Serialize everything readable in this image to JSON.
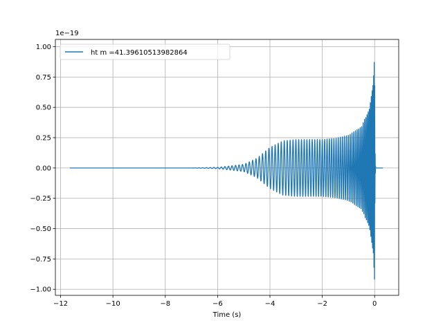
{
  "chart_data": {
    "type": "line",
    "title": "",
    "xlabel": "Time (s)",
    "ylabel": "",
    "y_offset_text": "1e−19",
    "xlim": [
      -12.2,
      0.92
    ],
    "ylim": [
      -1.05,
      1.06
    ],
    "x_ticks": [
      -12,
      -10,
      -8,
      -6,
      -4,
      -2,
      0
    ],
    "x_tick_labels": [
      "−12",
      "−10",
      "−8",
      "−6",
      "−4",
      "−2",
      "0"
    ],
    "y_ticks": [
      -1.0,
      -0.75,
      -0.5,
      -0.25,
      0.0,
      0.25,
      0.5,
      0.75,
      1.0
    ],
    "y_tick_labels": [
      "−1.00",
      "−0.75",
      "−0.50",
      "−0.25",
      "0.00",
      "0.25",
      "0.50",
      "0.75",
      "1.00"
    ],
    "grid": true,
    "legend": {
      "position": "top-left",
      "entries": [
        "ht m =41.39610513982864"
      ]
    },
    "series": [
      {
        "name": "ht m =41.39610513982864",
        "color": "#1f77b4",
        "x_start": -11.65,
        "x_end": 0.32,
        "merger_time": 0.0,
        "description_points": {
          "x": [
            -11.65,
            -7.0,
            -6.0,
            -5.0,
            -4.5,
            -4.0,
            -3.5,
            -3.0,
            -2.5,
            -2.0,
            -1.5,
            -1.0,
            -0.5,
            -0.2,
            -0.05,
            0.0,
            0.05,
            0.32
          ],
          "amplitude": [
            0.0,
            0.0,
            0.005,
            0.03,
            0.08,
            0.17,
            0.225,
            0.235,
            0.235,
            0.235,
            0.245,
            0.27,
            0.34,
            0.5,
            0.72,
            0.97,
            0.0,
            0.0
          ]
        }
      }
    ]
  }
}
